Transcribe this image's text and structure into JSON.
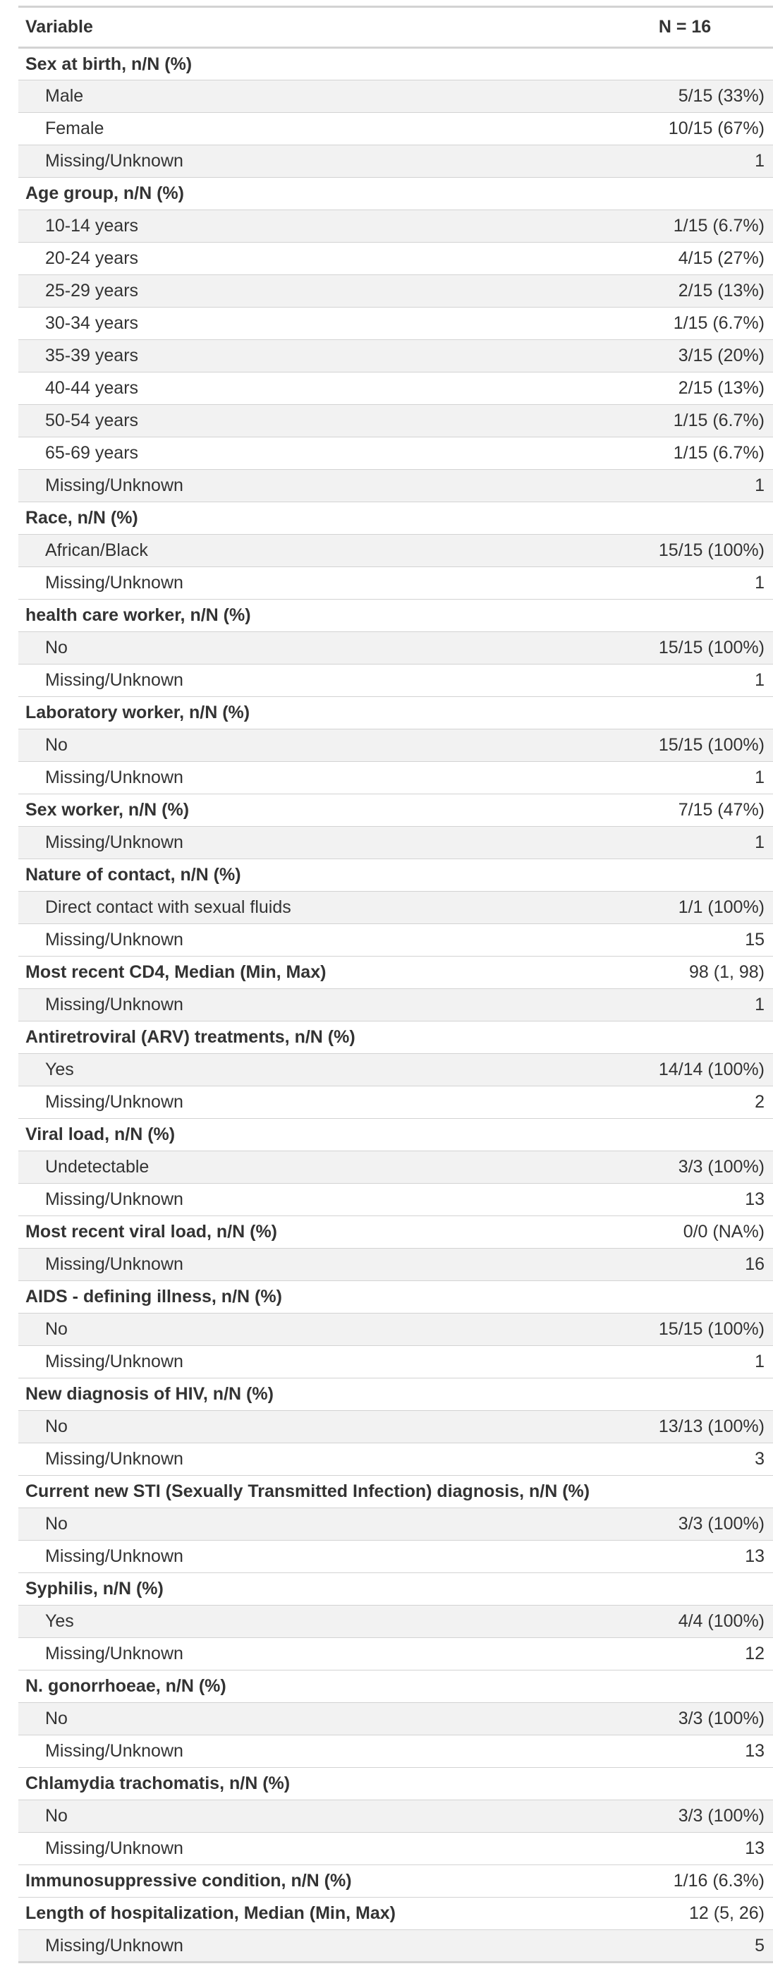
{
  "header": {
    "variable": "Variable",
    "n": "N = 16"
  },
  "rows": [
    {
      "type": "header",
      "label": "Sex at birth, n/N (%)",
      "value": ""
    },
    {
      "type": "level",
      "label": "Male",
      "value": "5/15 (33%)"
    },
    {
      "type": "level",
      "label": "Female",
      "value": "10/15 (67%)"
    },
    {
      "type": "level",
      "label": "Missing/Unknown",
      "value": "1"
    },
    {
      "type": "header",
      "label": "Age group, n/N (%)",
      "value": ""
    },
    {
      "type": "level",
      "label": "10-14 years",
      "value": "1/15 (6.7%)"
    },
    {
      "type": "level",
      "label": "20-24 years",
      "value": "4/15 (27%)"
    },
    {
      "type": "level",
      "label": "25-29 years",
      "value": "2/15 (13%)"
    },
    {
      "type": "level",
      "label": "30-34 years",
      "value": "1/15 (6.7%)"
    },
    {
      "type": "level",
      "label": "35-39 years",
      "value": "3/15 (20%)"
    },
    {
      "type": "level",
      "label": "40-44 years",
      "value": "2/15 (13%)"
    },
    {
      "type": "level",
      "label": "50-54 years",
      "value": "1/15 (6.7%)"
    },
    {
      "type": "level",
      "label": "65-69 years",
      "value": "1/15 (6.7%)"
    },
    {
      "type": "level",
      "label": "Missing/Unknown",
      "value": "1"
    },
    {
      "type": "header",
      "label": "Race, n/N (%)",
      "value": ""
    },
    {
      "type": "level",
      "label": "African/Black",
      "value": "15/15 (100%)"
    },
    {
      "type": "level",
      "label": "Missing/Unknown",
      "value": "1"
    },
    {
      "type": "header",
      "label": "health care worker, n/N (%)",
      "value": ""
    },
    {
      "type": "level",
      "label": "No",
      "value": "15/15 (100%)"
    },
    {
      "type": "level",
      "label": "Missing/Unknown",
      "value": "1"
    },
    {
      "type": "header",
      "label": "Laboratory worker, n/N (%)",
      "value": ""
    },
    {
      "type": "level",
      "label": "No",
      "value": "15/15 (100%)"
    },
    {
      "type": "level",
      "label": "Missing/Unknown",
      "value": "1"
    },
    {
      "type": "header",
      "label": "Sex worker, n/N (%)",
      "value": "7/15 (47%)"
    },
    {
      "type": "level",
      "label": "Missing/Unknown",
      "value": "1"
    },
    {
      "type": "header",
      "label": "Nature of contact, n/N (%)",
      "value": ""
    },
    {
      "type": "level",
      "label": "Direct contact with sexual fluids",
      "value": "1/1 (100%)"
    },
    {
      "type": "level",
      "label": "Missing/Unknown",
      "value": "15"
    },
    {
      "type": "header",
      "label": "Most recent CD4, Median (Min, Max)",
      "value": "98 (1, 98)"
    },
    {
      "type": "level",
      "label": "Missing/Unknown",
      "value": "1"
    },
    {
      "type": "header",
      "label": "Antiretroviral (ARV) treatments, n/N (%)",
      "value": ""
    },
    {
      "type": "level",
      "label": "Yes",
      "value": "14/14 (100%)"
    },
    {
      "type": "level",
      "label": "Missing/Unknown",
      "value": "2"
    },
    {
      "type": "header",
      "label": "Viral load, n/N (%)",
      "value": ""
    },
    {
      "type": "level",
      "label": "Undetectable",
      "value": "3/3 (100%)"
    },
    {
      "type": "level",
      "label": "Missing/Unknown",
      "value": "13"
    },
    {
      "type": "header",
      "label": "Most recent viral load, n/N (%)",
      "value": "0/0 (NA%)"
    },
    {
      "type": "level",
      "label": "Missing/Unknown",
      "value": "16"
    },
    {
      "type": "header",
      "label": "AIDS - defining illness, n/N (%)",
      "value": ""
    },
    {
      "type": "level",
      "label": "No",
      "value": "15/15 (100%)"
    },
    {
      "type": "level",
      "label": "Missing/Unknown",
      "value": "1"
    },
    {
      "type": "header",
      "label": "New diagnosis of HIV, n/N (%)",
      "value": ""
    },
    {
      "type": "level",
      "label": "No",
      "value": "13/13 (100%)"
    },
    {
      "type": "level",
      "label": "Missing/Unknown",
      "value": "3"
    },
    {
      "type": "header",
      "label": "Current new STI (Sexually Transmitted Infection) diagnosis, n/N (%)",
      "value": ""
    },
    {
      "type": "level",
      "label": "No",
      "value": "3/3 (100%)"
    },
    {
      "type": "level",
      "label": "Missing/Unknown",
      "value": "13"
    },
    {
      "type": "header",
      "label": "Syphilis, n/N (%)",
      "value": ""
    },
    {
      "type": "level",
      "label": "Yes",
      "value": "4/4 (100%)"
    },
    {
      "type": "level",
      "label": "Missing/Unknown",
      "value": "12"
    },
    {
      "type": "header",
      "label": "N. gonorrhoeae, n/N (%)",
      "value": ""
    },
    {
      "type": "level",
      "label": "No",
      "value": "3/3 (100%)"
    },
    {
      "type": "level",
      "label": "Missing/Unknown",
      "value": "13"
    },
    {
      "type": "header",
      "label": "Chlamydia trachomatis, n/N (%)",
      "value": ""
    },
    {
      "type": "level",
      "label": "No",
      "value": "3/3 (100%)"
    },
    {
      "type": "level",
      "label": "Missing/Unknown",
      "value": "13"
    },
    {
      "type": "header",
      "label": "Immunosuppressive condition, n/N (%)",
      "value": "1/16 (6.3%)"
    },
    {
      "type": "header",
      "label": "Length of hospitalization, Median (Min, Max)",
      "value": "12 (5, 26)"
    },
    {
      "type": "level",
      "label": "Missing/Unknown",
      "value": "5"
    }
  ]
}
